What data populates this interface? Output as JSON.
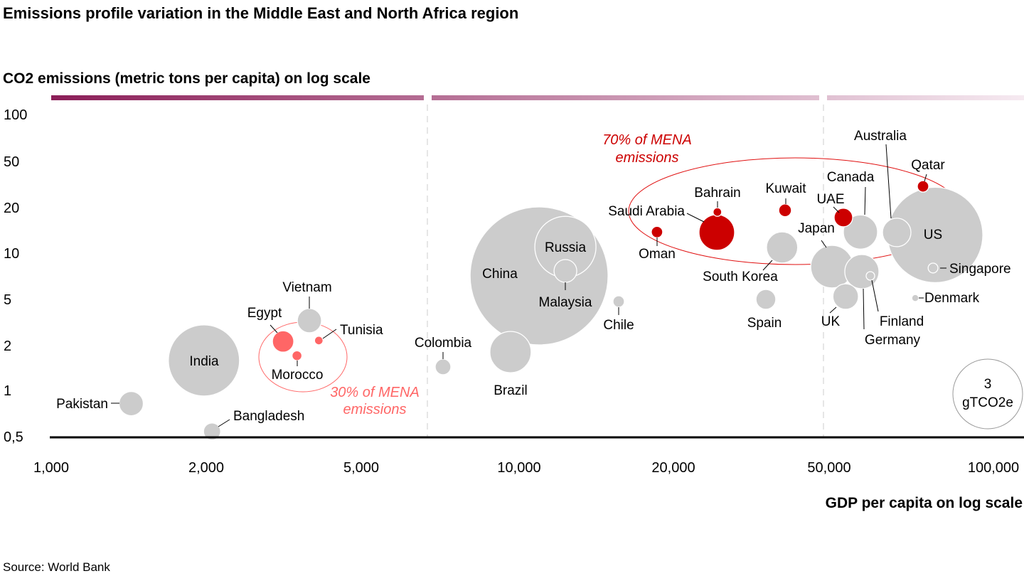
{
  "title": "Emissions profile variation in the Middle East and North Africa region",
  "source": "Source: World Bank",
  "colors": {
    "other": "#cccccc",
    "mena_high": "#cc0000",
    "mena_low": "#ff6666",
    "band_start": "#8b1e58",
    "band_end": "#f6eaf1"
  },
  "chart_data": {
    "type": "scatter",
    "subtype": "bubble",
    "ylabel": "CO2 emissions (metric tons per capita) on log scale",
    "xlabel": "GDP per capita on log scale",
    "x_scale": "log",
    "y_scale": "log",
    "xlim": [
      1000,
      100000
    ],
    "ylim": [
      0.5,
      100
    ],
    "x_ticks": [
      {
        "value": 1000,
        "label": "1,000"
      },
      {
        "value": 2000,
        "label": "2,000"
      },
      {
        "value": 5000,
        "label": "5,000"
      },
      {
        "value": 10000,
        "label": "10,000"
      },
      {
        "value": 20000,
        "label": "20,000"
      },
      {
        "value": 50000,
        "label": "50,000"
      },
      {
        "value": 100000,
        "label": "100,000"
      }
    ],
    "y_ticks": [
      {
        "value": 100,
        "label": "100"
      },
      {
        "value": 50,
        "label": "50"
      },
      {
        "value": 20,
        "label": "20"
      },
      {
        "value": 10,
        "label": "10"
      },
      {
        "value": 5,
        "label": "5"
      },
      {
        "value": 2,
        "label": "2"
      },
      {
        "value": 1,
        "label": "1"
      },
      {
        "value": 0.5,
        "label": "0,5"
      }
    ],
    "grid": false,
    "size_legend": {
      "value": "3",
      "unit": "gTCO2e",
      "size": 3,
      "placement": "bottom-right"
    },
    "annotations": [
      {
        "id": "mena-high",
        "lines": [
          "70% of MENA",
          "emissions"
        ],
        "color": "#cc0000"
      },
      {
        "id": "mena-low",
        "lines": [
          "30% of MENA",
          "emissions"
        ],
        "color": "#ff6666"
      }
    ],
    "points": [
      {
        "name": "Pakistan",
        "gdp": 1430,
        "co2": 0.82,
        "size": 0.36,
        "group": "other"
      },
      {
        "name": "Bangladesh",
        "gdp": 2070,
        "co2": 0.54,
        "size": 0.18,
        "group": "other"
      },
      {
        "name": "India",
        "gdp": 1980,
        "co2": 1.59,
        "size": 3.12,
        "group": "other"
      },
      {
        "name": "Egypt",
        "gdp": 3150,
        "co2": 2.17,
        "size": 0.28,
        "group": "mena_low"
      },
      {
        "name": "Morocco",
        "gdp": 3420,
        "co2": 1.71,
        "size": 0.06,
        "group": "mena_low"
      },
      {
        "name": "Tunisia",
        "gdp": 3890,
        "co2": 2.21,
        "size": 0.045,
        "group": "mena_low"
      },
      {
        "name": "Vietnam",
        "gdp": 3680,
        "co2": 3.28,
        "size": 0.36,
        "group": "other"
      },
      {
        "name": "Colombia",
        "gdp": 7160,
        "co2": 1.44,
        "size": 0.15,
        "group": "other"
      },
      {
        "name": "Brazil",
        "gdp": 9630,
        "co2": 1.81,
        "size": 1.05,
        "group": "other"
      },
      {
        "name": "China",
        "gdp": 10940,
        "co2": 7.11,
        "size": 11.76,
        "group": "other"
      },
      {
        "name": "Russia",
        "gdp": 12310,
        "co2": 11.0,
        "size": 2.31,
        "group": "other"
      },
      {
        "name": "Malaysia",
        "gdp": 12310,
        "co2": 7.66,
        "size": 0.32,
        "group": "other"
      },
      {
        "name": "Chile",
        "gdp": 15640,
        "co2": 4.79,
        "size": 0.08,
        "group": "other"
      },
      {
        "name": "Oman",
        "gdp": 18580,
        "co2": 13.8,
        "size": 0.08,
        "group": "mena_high"
      },
      {
        "name": "Saudi Arabia",
        "gdp": 25820,
        "co2": 13.7,
        "size": 0.78,
        "group": "mena_high"
      },
      {
        "name": "Bahrain",
        "gdp": 25900,
        "co2": 18.7,
        "size": 0.045,
        "group": "mena_high"
      },
      {
        "name": "Kuwait",
        "gdp": 38580,
        "co2": 19.2,
        "size": 0.1,
        "group": "mena_high"
      },
      {
        "name": "South Korea",
        "gdp": 37900,
        "co2": 10.9,
        "size": 0.6,
        "group": "other"
      },
      {
        "name": "Spain",
        "gdp": 34450,
        "co2": 5.0,
        "size": 0.24,
        "group": "other"
      },
      {
        "name": "UAE",
        "gdp": 53100,
        "co2": 17.2,
        "size": 0.21,
        "group": "mena_high"
      },
      {
        "name": "Canada",
        "gdp": 57060,
        "co2": 13.8,
        "size": 0.72,
        "group": "other"
      },
      {
        "name": "Japan",
        "gdp": 50600,
        "co2": 8.17,
        "size": 1.12,
        "group": "other"
      },
      {
        "name": "UK",
        "gdp": 53600,
        "co2": 5.22,
        "size": 0.4,
        "group": "other"
      },
      {
        "name": "Germany",
        "gdp": 57400,
        "co2": 7.58,
        "size": 0.72,
        "group": "other"
      },
      {
        "name": "Finland",
        "gdp": 59500,
        "co2": 7.11,
        "size": 0.045,
        "group": "other"
      },
      {
        "name": "Australia",
        "gdp": 66500,
        "co2": 13.7,
        "size": 0.5,
        "group": "other"
      },
      {
        "name": "Qatar",
        "gdp": 74300,
        "co2": 30.5,
        "size": 0.08,
        "group": "mena_high"
      },
      {
        "name": "US",
        "gdp": 78200,
        "co2": 13.2,
        "size": 5.61,
        "group": "other"
      },
      {
        "name": "Singapore",
        "gdp": 77500,
        "co2": 8.0,
        "size": 0.06,
        "group": "other"
      },
      {
        "name": "Denmark",
        "gdp": 71900,
        "co2": 5.1,
        "size": 0.03,
        "group": "other"
      }
    ]
  }
}
